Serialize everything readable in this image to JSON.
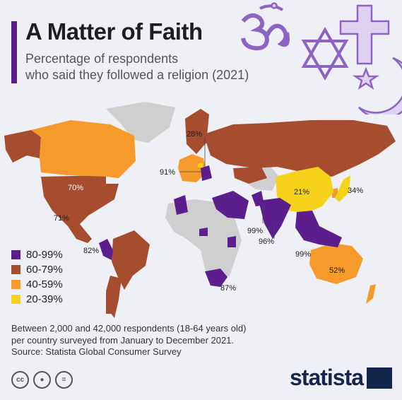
{
  "header": {
    "title": "A Matter of Faith",
    "subtitle_line1": "Percentage of respondents",
    "subtitle_line2": "who said they followed a religion (2021)"
  },
  "colors": {
    "accent": "#5b1e8c",
    "band_80_99": "#5b1e8c",
    "band_60_79": "#a64d2f",
    "band_40_59": "#f59a2b",
    "band_20_39": "#f7d21a",
    "no_data": "#cfcfcf",
    "background": "#eef0f6"
  },
  "chart_data": {
    "type": "choropleth",
    "title": "A Matter of Faith",
    "subtitle": "Percentage of respondents who said they followed a religion (2021)",
    "legend": [
      {
        "label": "80-99%",
        "color": "#5b1e8c"
      },
      {
        "label": "60-79%",
        "color": "#a64d2f"
      },
      {
        "label": "40-59%",
        "color": "#f59a2b"
      },
      {
        "label": "20-39%",
        "color": "#f7d21a"
      }
    ],
    "labeled_values": [
      {
        "country": "Germany",
        "value": "91%"
      },
      {
        "country": "Netherlands",
        "value": "28%"
      },
      {
        "country": "United States",
        "value": "70%"
      },
      {
        "country": "Mexico",
        "value": "71%"
      },
      {
        "country": "Peru",
        "value": "82%"
      },
      {
        "country": "South Africa",
        "value": "87%"
      },
      {
        "country": "Pakistan",
        "value": "99%"
      },
      {
        "country": "India",
        "value": "96%"
      },
      {
        "country": "Indonesia",
        "value": "99%"
      },
      {
        "country": "China",
        "value": "21%"
      },
      {
        "country": "Japan",
        "value": "34%"
      },
      {
        "country": "Australia",
        "value": "52%"
      }
    ],
    "band_assignment": [
      {
        "region": "Canada",
        "band": "40-59%"
      },
      {
        "region": "United States",
        "band": "60-79%"
      },
      {
        "region": "Mexico",
        "band": "60-79%"
      },
      {
        "region": "Brazil",
        "band": "60-79%"
      },
      {
        "region": "Argentina",
        "band": "60-79%"
      },
      {
        "region": "Peru",
        "band": "80-99%"
      },
      {
        "region": "Russia",
        "band": "60-79%"
      },
      {
        "region": "Scandinavia",
        "band": "60-79%"
      },
      {
        "region": "Western Europe",
        "band": "40-59%"
      },
      {
        "region": "Germany",
        "band": "80-99%"
      },
      {
        "region": "Netherlands",
        "band": "20-39%"
      },
      {
        "region": "Middle East",
        "band": "80-99%"
      },
      {
        "region": "India",
        "band": "80-99%"
      },
      {
        "region": "China",
        "band": "20-39%"
      },
      {
        "region": "Japan",
        "band": "20-39%"
      },
      {
        "region": "South Korea",
        "band": "40-59%"
      },
      {
        "region": "Kazakhstan",
        "band": "60-79%"
      },
      {
        "region": "Southeast Asia",
        "band": "80-99%"
      },
      {
        "region": "Australia",
        "band": "40-59%"
      },
      {
        "region": "New Zealand",
        "band": "40-59%"
      },
      {
        "region": "South Africa",
        "band": "80-99%"
      },
      {
        "region": "Kenya",
        "band": "80-99%"
      },
      {
        "region": "Nigeria",
        "band": "80-99%"
      }
    ]
  },
  "labels": {
    "germany": "91%",
    "netherlands": "28%",
    "usa": "70%",
    "mexico": "71%",
    "peru": "82%",
    "south_africa": "87%",
    "pakistan": "99%",
    "india": "96%",
    "indonesia": "99%",
    "china": "21%",
    "japan": "34%",
    "australia": "52%"
  },
  "legend": {
    "items": [
      "80-99%",
      "60-79%",
      "40-59%",
      "20-39%"
    ]
  },
  "footer": {
    "note_line1": "Between 2,000 and 42,000 respondents (18-64 years old)",
    "note_line2": "per country surveyed from January to December 2021.",
    "source": "Source: Statista Global Consumer Survey",
    "brand": "statista",
    "license_icons": [
      "cc-icon",
      "attribution-icon",
      "no-derivatives-icon"
    ]
  }
}
